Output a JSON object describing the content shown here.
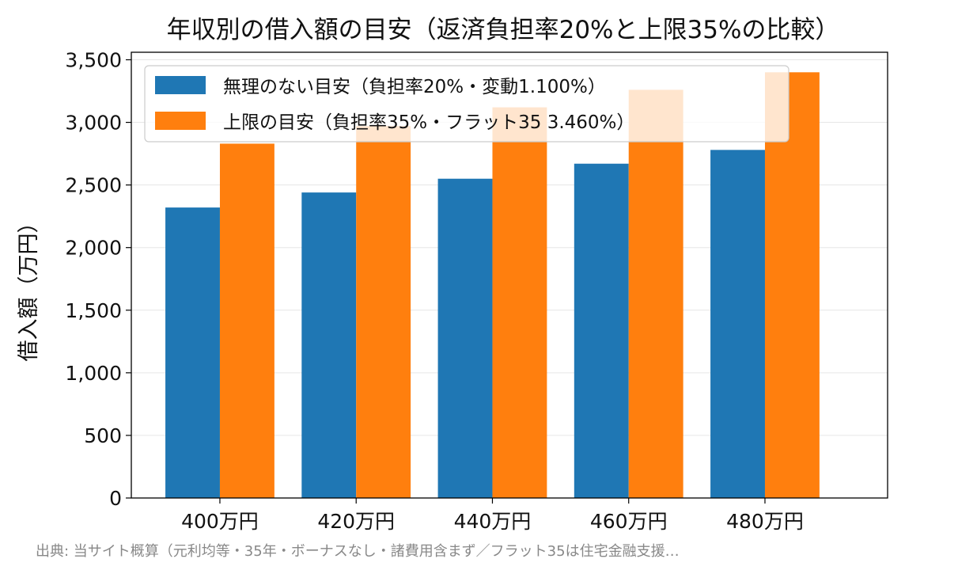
{
  "chart_data": {
    "type": "bar",
    "title": "年収別の借入額の目安（返済負担率20%と上限35%の比較）",
    "xlabel": "",
    "ylabel": "借入額（万円）",
    "categories": [
      "400万円",
      "420万円",
      "440万円",
      "460万円",
      "480万円"
    ],
    "series": [
      {
        "name": "無理のない目安（負担率20%・変動1.100%）",
        "color": "#1f77b4",
        "values": [
          2320,
          2440,
          2550,
          2670,
          2780
        ]
      },
      {
        "name": "上限の目安（負担率35%・フラット35 3.460%）",
        "color": "#ff7f0e",
        "values": [
          2830,
          2970,
          3120,
          3260,
          3400
        ]
      }
    ],
    "ylim": [
      0,
      3560
    ],
    "yticks": [
      0,
      500,
      1000,
      1500,
      2000,
      2500,
      3000,
      3500
    ],
    "ytick_labels": [
      "0",
      "500",
      "1,000",
      "1,500",
      "2,000",
      "2,500",
      "3,000",
      "3,500"
    ],
    "grid": "horizontal",
    "legend_position": "top-left",
    "source": "出典: 当サイト概算（元利均等・35年・ボーナスなし・諸費用含まず／フラット35は住宅金融支援…"
  }
}
